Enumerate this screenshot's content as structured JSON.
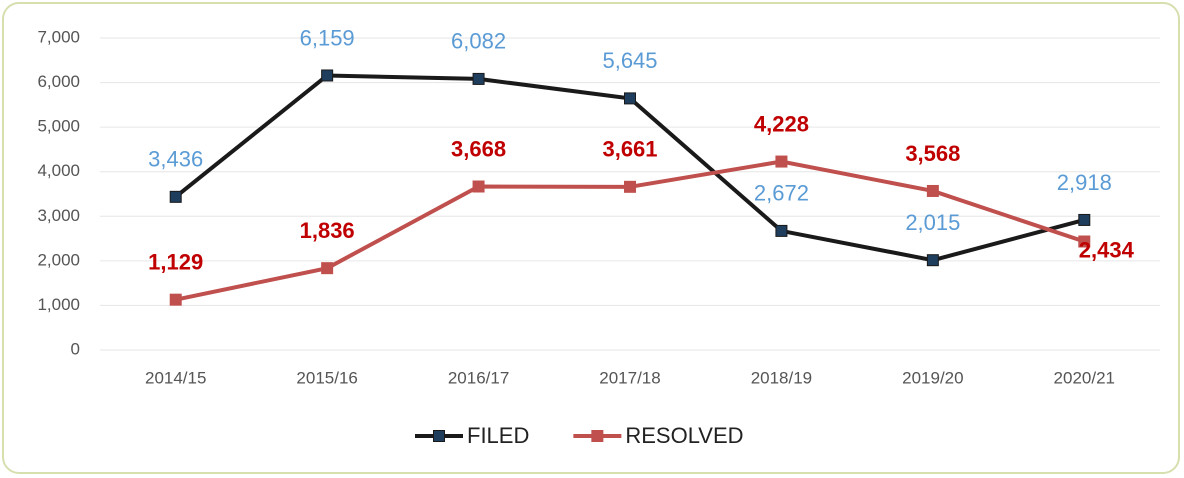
{
  "chart_data": {
    "type": "line",
    "categories": [
      "2014/15",
      "2015/16",
      "2016/17",
      "2017/18",
      "2018/19",
      "2019/20",
      "2020/21"
    ],
    "series": [
      {
        "name": "FILED",
        "color": "#1a1a1a",
        "label_color": "#5b9bd5",
        "marker_color": "#1f3d5c",
        "values": [
          3436,
          6159,
          6082,
          5645,
          2672,
          2015,
          2918
        ],
        "value_labels": [
          "3,436",
          "6,159",
          "6,082",
          "5,645",
          "2,672",
          "2,015",
          "2,918"
        ]
      },
      {
        "name": "RESOLVED",
        "color": "#c0504d",
        "label_color": "#c00000",
        "marker_color": "#c0504d",
        "values": [
          1129,
          1836,
          3668,
          3661,
          4228,
          3568,
          2434
        ],
        "value_labels": [
          "1,129",
          "1,836",
          "3,668",
          "3,661",
          "4,228",
          "3,568",
          "2,434"
        ]
      }
    ],
    "ylim": [
      0,
      7000
    ],
    "yticks": [
      0,
      {
        "value": 1000,
        "label": "1,000"
      },
      {
        "value": 2000,
        "label": "2,000"
      },
      {
        "value": 3000,
        "label": "3,000"
      },
      {
        "value": 4000,
        "label": "4,000"
      },
      {
        "value": 5000,
        "label": "5,000"
      },
      {
        "value": 6000,
        "label": "6,000"
      },
      {
        "value": 7000,
        "label": "7,000"
      }
    ],
    "grid": true,
    "legend": "bottom"
  }
}
